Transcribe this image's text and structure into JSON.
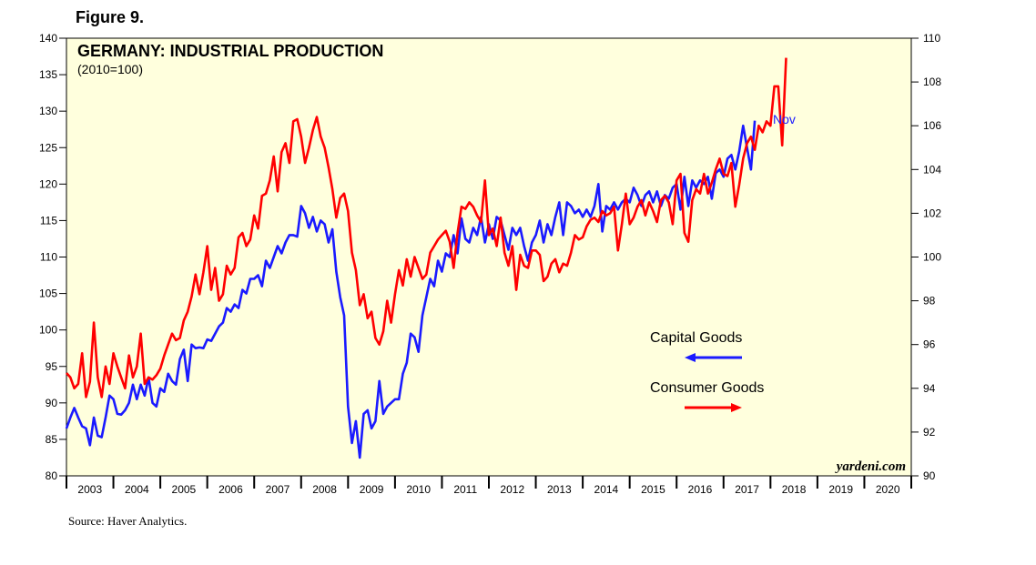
{
  "figure_label": "Figure 9.",
  "source": "Source: Haver Analytics.",
  "colors": {
    "capital": "#1a1aff",
    "consumer": "#ff0000",
    "background": "#ffffdd"
  },
  "chart_data": {
    "type": "line",
    "title": "GERMANY: INDUSTRIAL PRODUCTION",
    "subtitle": "(2010=100)",
    "watermark": "yardeni.com",
    "annotation": "Nov",
    "xlim": [
      2003,
      2021
    ],
    "x_tick_labels": [
      "2003",
      "2004",
      "2005",
      "2006",
      "2007",
      "2008",
      "2009",
      "2010",
      "2011",
      "2012",
      "2013",
      "2014",
      "2015",
      "2016",
      "2017",
      "2018",
      "2019",
      "2020"
    ],
    "left_axis": {
      "ylim": [
        80,
        140
      ],
      "ticks": [
        "80",
        "85",
        "90",
        "95",
        "100",
        "105",
        "110",
        "115",
        "120",
        "125",
        "130",
        "135",
        "140"
      ]
    },
    "right_axis": {
      "ylim": [
        90,
        110
      ],
      "ticks": [
        "90",
        "92",
        "94",
        "96",
        "98",
        "100",
        "102",
        "104",
        "106",
        "108",
        "110"
      ]
    },
    "legend": [
      {
        "name": "Capital Goods",
        "axis": "left",
        "arrow": "left"
      },
      {
        "name": "Consumer Goods",
        "axis": "right",
        "arrow": "right"
      }
    ],
    "series": [
      {
        "name": "Capital Goods",
        "axis": "left",
        "start": 2003.0,
        "step": 0.0833333,
        "values": [
          86.5,
          88.0,
          89.3,
          88.0,
          86.8,
          86.5,
          84.2,
          88.0,
          85.5,
          85.3,
          88.0,
          91.0,
          90.5,
          88.5,
          88.4,
          89.0,
          90.0,
          92.5,
          90.5,
          92.5,
          91.0,
          93.5,
          90.0,
          89.5,
          92.0,
          91.5,
          94.0,
          93.0,
          92.5,
          96.0,
          97.3,
          93.0,
          98.0,
          97.5,
          97.6,
          97.5,
          98.7,
          98.5,
          99.5,
          100.5,
          101.0,
          103.0,
          102.5,
          103.5,
          103.0,
          105.5,
          105.0,
          107.0,
          107.0,
          107.5,
          106.0,
          109.5,
          108.5,
          110.0,
          111.5,
          110.5,
          112.0,
          113.0,
          113.0,
          112.8,
          117.0,
          116.0,
          114.0,
          115.5,
          113.5,
          115.0,
          114.5,
          112.0,
          113.8,
          108.0,
          104.5,
          102.0,
          89.5,
          84.5,
          87.5,
          82.5,
          88.5,
          89.0,
          86.5,
          87.5,
          93.0,
          88.5,
          89.5,
          90.0,
          90.5,
          90.5,
          94.0,
          95.5,
          99.5,
          99.0,
          97.0,
          102.0,
          104.5,
          107.0,
          106.0,
          109.5,
          108.0,
          110.5,
          110.0,
          113.0,
          110.5,
          115.3,
          112.5,
          112.0,
          114.0,
          113.0,
          115.5,
          112.0,
          114.5,
          112.5,
          115.5,
          115.0,
          113.0,
          111.0,
          114.0,
          113.0,
          114.0,
          111.5,
          109.5,
          112.0,
          113.0,
          115.0,
          112.0,
          114.5,
          113.0,
          115.5,
          117.5,
          113.0,
          117.5,
          117.0,
          116.0,
          116.5,
          115.5,
          116.5,
          115.5,
          117.0,
          120.0,
          113.5,
          117.0,
          116.5,
          117.5,
          116.5,
          117.5,
          118.0,
          117.5,
          119.5,
          118.5,
          117.0,
          118.5,
          119.0,
          117.5,
          119.0,
          117.0,
          118.5,
          118.0,
          119.5,
          120.0,
          116.5,
          121.0,
          117.0,
          120.5,
          119.5,
          120.5,
          120.0,
          121.0,
          118.0,
          121.5,
          122.0,
          121.0,
          123.5,
          124.0,
          122.0,
          124.5,
          128.0,
          125.0,
          122.0,
          128.7
        ]
      },
      {
        "name": "Consumer Goods",
        "axis": "right",
        "start": 2003.0,
        "step": 0.0833333,
        "values": [
          94.7,
          94.5,
          94.0,
          94.2,
          95.6,
          93.6,
          94.3,
          97.0,
          94.5,
          93.6,
          95.0,
          94.2,
          95.6,
          95.0,
          94.5,
          94.0,
          95.5,
          94.5,
          95.0,
          96.5,
          94.2,
          94.5,
          94.4,
          94.6,
          94.9,
          95.5,
          96.0,
          96.5,
          96.2,
          96.3,
          97.1,
          97.5,
          98.2,
          99.2,
          98.3,
          99.3,
          100.5,
          98.5,
          99.5,
          98.0,
          98.3,
          99.6,
          99.2,
          99.5,
          100.9,
          101.1,
          100.5,
          100.8,
          101.9,
          101.3,
          102.8,
          102.9,
          103.5,
          104.6,
          103.0,
          104.8,
          105.2,
          104.3,
          106.2,
          106.3,
          105.5,
          104.3,
          105.0,
          105.8,
          106.4,
          105.5,
          105.0,
          104.1,
          103.1,
          101.8,
          102.7,
          102.9,
          102.1,
          100.2,
          99.4,
          97.8,
          98.3,
          97.2,
          97.5,
          96.3,
          96.0,
          96.6,
          98.0,
          97.0,
          98.3,
          99.4,
          98.7,
          99.9,
          99.1,
          100.0,
          99.5,
          99.0,
          99.2,
          100.2,
          100.5,
          100.8,
          101.0,
          101.2,
          100.7,
          99.5,
          101.1,
          102.3,
          102.2,
          102.5,
          102.3,
          101.9,
          101.6,
          103.5,
          101.0,
          101.3,
          100.5,
          101.8,
          100.2,
          99.6,
          100.5,
          98.5,
          100.1,
          99.6,
          99.5,
          100.3,
          100.3,
          100.1,
          98.9,
          99.1,
          99.7,
          99.9,
          99.3,
          99.7,
          99.6,
          100.2,
          101.0,
          100.8,
          100.9,
          101.4,
          101.7,
          101.8,
          101.6,
          102.1,
          101.9,
          102.0,
          102.3,
          100.3,
          101.5,
          102.9,
          101.5,
          101.8,
          102.3,
          102.6,
          101.9,
          102.5,
          102.1,
          101.6,
          102.6,
          102.8,
          102.5,
          101.5,
          103.5,
          103.8,
          101.1,
          100.7,
          102.6,
          103.1,
          102.9,
          103.8,
          102.9,
          103.4,
          104.0,
          104.5,
          103.8,
          103.7,
          104.3,
          102.3,
          103.3,
          104.5,
          105.2,
          105.5,
          104.9,
          106.0,
          105.7,
          106.2,
          106.0,
          107.8,
          107.8,
          105.1,
          109.1
        ]
      }
    ]
  }
}
